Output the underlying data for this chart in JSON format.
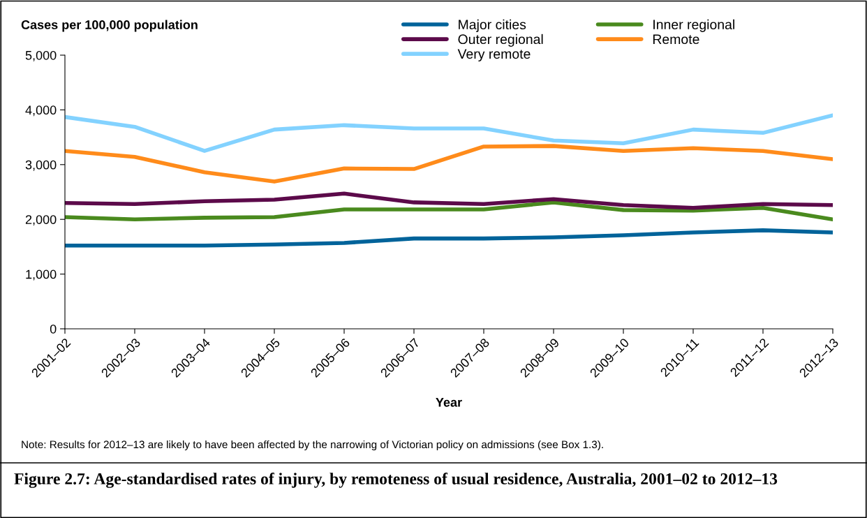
{
  "chart_data": {
    "type": "line",
    "title": "Figure 2.7: Age-standardised rates of injury, by remoteness of usual residence, Australia, 2001–02 to 2012–13",
    "xlabel": "Year",
    "ylabel": "Cases per 100,000 population",
    "annotations": [
      "Note: Results for 2012–13 are likely to have been affected by the narrowing of Victorian policy on admissions (see Box 1.3)."
    ],
    "categories": [
      "2001–02",
      "2002–03",
      "2003–04",
      "2004–05",
      "2005–06",
      "2006–07",
      "2007–08",
      "2008–09",
      "2009–10",
      "2010–11",
      "2011–12",
      "2012–13"
    ],
    "series": [
      {
        "name": "Major cities",
        "color": "#00639a",
        "values": [
          1520,
          1520,
          1520,
          1540,
          1570,
          1650,
          1650,
          1670,
          1710,
          1760,
          1800,
          1760
        ]
      },
      {
        "name": "Inner regional",
        "color": "#4a8a1e",
        "values": [
          2040,
          2000,
          2030,
          2040,
          2180,
          2180,
          2180,
          2310,
          2170,
          2160,
          2210,
          2000
        ]
      },
      {
        "name": "Outer regional",
        "color": "#5c0a4a",
        "values": [
          2300,
          2280,
          2330,
          2360,
          2470,
          2310,
          2280,
          2370,
          2260,
          2210,
          2280,
          2260
        ]
      },
      {
        "name": "Remote",
        "color": "#ff8b1a",
        "values": [
          3250,
          3140,
          2860,
          2690,
          2930,
          2920,
          3330,
          3340,
          3250,
          3300,
          3250,
          3100
        ]
      },
      {
        "name": "Very remote",
        "color": "#83d2ff",
        "values": [
          3870,
          3690,
          3250,
          3640,
          3720,
          3660,
          3660,
          3440,
          3390,
          3640,
          3580,
          3900
        ]
      }
    ],
    "ylim": [
      0,
      5000
    ],
    "yticks": [
      {
        "value": 0,
        "label": "0"
      },
      {
        "value": 1000,
        "label": "1,000"
      },
      {
        "value": 2000,
        "label": "2,000"
      },
      {
        "value": 3000,
        "label": "3,000"
      },
      {
        "value": 4000,
        "label": "4,000"
      },
      {
        "value": 5000,
        "label": "5,000"
      }
    ],
    "grid": false,
    "legend": "top",
    "marker": "none",
    "line_style": "solid"
  }
}
